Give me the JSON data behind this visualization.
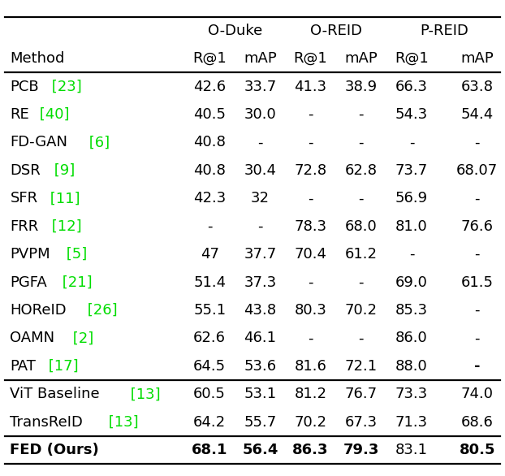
{
  "rows": [
    {
      "method": "PCB",
      "ref": " [23]",
      "values": [
        "42.6",
        "33.7",
        "41.3",
        "38.9",
        "66.3",
        "63.8"
      ],
      "bold": [
        false,
        false,
        false,
        false,
        false,
        false
      ],
      "group": "other"
    },
    {
      "method": "RE",
      "ref": " [40]",
      "values": [
        "40.5",
        "30.0",
        "-",
        "-",
        "54.3",
        "54.4"
      ],
      "bold": [
        false,
        false,
        false,
        false,
        false,
        false
      ],
      "group": "other"
    },
    {
      "method": "FD-GAN",
      "ref": " [6]",
      "values": [
        "40.8",
        "-",
        "-",
        "-",
        "-",
        "-"
      ],
      "bold": [
        false,
        false,
        false,
        false,
        false,
        false
      ],
      "group": "other"
    },
    {
      "method": "DSR",
      "ref": " [9]",
      "values": [
        "40.8",
        "30.4",
        "72.8",
        "62.8",
        "73.7",
        "68.07"
      ],
      "bold": [
        false,
        false,
        false,
        false,
        false,
        false
      ],
      "group": "other"
    },
    {
      "method": "SFR",
      "ref": " [11]",
      "values": [
        "42.3",
        "32",
        "-",
        "-",
        "56.9",
        "-"
      ],
      "bold": [
        false,
        false,
        false,
        false,
        false,
        false
      ],
      "group": "other"
    },
    {
      "method": "FRR",
      "ref": " [12]",
      "values": [
        "-",
        "-",
        "78.3",
        "68.0",
        "81.0",
        "76.6"
      ],
      "bold": [
        false,
        false,
        false,
        false,
        false,
        false
      ],
      "group": "other"
    },
    {
      "method": "PVPM",
      "ref": " [5]",
      "values": [
        "47",
        "37.7",
        "70.4",
        "61.2",
        "-",
        "-"
      ],
      "bold": [
        false,
        false,
        false,
        false,
        false,
        false
      ],
      "group": "other"
    },
    {
      "method": "PGFA",
      "ref": " [21]",
      "values": [
        "51.4",
        "37.3",
        "-",
        "-",
        "69.0",
        "61.5"
      ],
      "bold": [
        false,
        false,
        false,
        false,
        false,
        false
      ],
      "group": "other"
    },
    {
      "method": "HOReID",
      "ref": " [26]",
      "values": [
        "55.1",
        "43.8",
        "80.3",
        "70.2",
        "85.3",
        "-"
      ],
      "bold": [
        false,
        false,
        false,
        false,
        false,
        false
      ],
      "group": "other"
    },
    {
      "method": "OAMN",
      "ref": " [2]",
      "values": [
        "62.6",
        "46.1",
        "-",
        "-",
        "86.0",
        "-"
      ],
      "bold": [
        false,
        false,
        false,
        false,
        false,
        false
      ],
      "group": "other"
    },
    {
      "method": "PAT",
      "ref": " [17]",
      "values": [
        "64.5",
        "53.6",
        "81.6",
        "72.1",
        "88.0",
        "-"
      ],
      "bold": [
        false,
        false,
        false,
        false,
        false,
        true
      ],
      "group": "other"
    },
    {
      "method": "ViT Baseline",
      "ref": " [13]",
      "values": [
        "60.5",
        "53.1",
        "81.2",
        "76.7",
        "73.3",
        "74.0"
      ],
      "bold": [
        false,
        false,
        false,
        false,
        false,
        false
      ],
      "group": "vit"
    },
    {
      "method": "TransReID",
      "ref": " [13]",
      "values": [
        "64.2",
        "55.7",
        "70.2",
        "67.3",
        "71.3",
        "68.6"
      ],
      "bold": [
        false,
        false,
        false,
        false,
        false,
        false
      ],
      "group": "vit"
    },
    {
      "method": "FED (Ours)",
      "ref": "",
      "values": [
        "68.1",
        "56.4",
        "86.3",
        "79.3",
        "83.1",
        "80.5"
      ],
      "bold": [
        true,
        true,
        true,
        true,
        false,
        true
      ],
      "group": "ours"
    }
  ],
  "group_headers": [
    "O-Duke",
    "O-REID",
    "P-REID"
  ],
  "col_labels": [
    "R@1",
    "mAP",
    "R@1",
    "mAP",
    "R@1",
    "mAP"
  ],
  "figsize": [
    6.22,
    5.86
  ],
  "dpi": 100,
  "fontsize": 13.0,
  "ref_color": "#00dd00",
  "text_color": "#000000",
  "bg_color": "#ffffff",
  "thick_lw": 1.6
}
